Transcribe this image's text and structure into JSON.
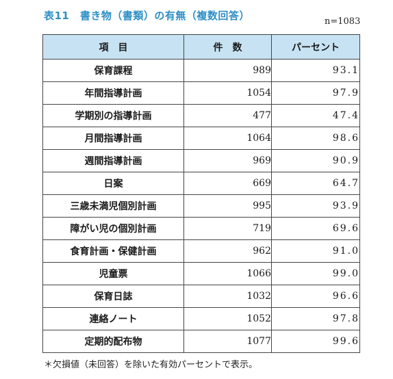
{
  "title": "表11　書き物（書類）の有無（複数回答）",
  "sample_size": "n=1083",
  "table": {
    "headers": {
      "item": "項　目",
      "count": "件　数",
      "percent": "パーセント"
    },
    "rows": [
      {
        "item": "保育課程",
        "count": "989",
        "percent": "93.1"
      },
      {
        "item": "年間指導計画",
        "count": "1054",
        "percent": "97.9"
      },
      {
        "item": "学期別の指導計画",
        "count": "477",
        "percent": "47.4"
      },
      {
        "item": "月間指導計画",
        "count": "1064",
        "percent": "98.6"
      },
      {
        "item": "週間指導計画",
        "count": "969",
        "percent": "90.9"
      },
      {
        "item": "日案",
        "count": "669",
        "percent": "64.7"
      },
      {
        "item": "三歳未満児個別計画",
        "count": "995",
        "percent": "93.9"
      },
      {
        "item": "障がい児の個別計画",
        "count": "719",
        "percent": "69.6"
      },
      {
        "item": "食育計画・保健計画",
        "count": "962",
        "percent": "91.0"
      },
      {
        "item": "児童票",
        "count": "1066",
        "percent": "99.0"
      },
      {
        "item": "保育日誌",
        "count": "1032",
        "percent": "96.6"
      },
      {
        "item": "連絡ノート",
        "count": "1052",
        "percent": "97.8"
      },
      {
        "item": "定期的配布物",
        "count": "1077",
        "percent": "99.6"
      }
    ]
  },
  "footnote": "＊欠損値（未回答）を除いた有効パーセントで表示。",
  "colors": {
    "title": "#2e8fc6",
    "header_bg": "#c7e3f3",
    "border": "#444444"
  }
}
